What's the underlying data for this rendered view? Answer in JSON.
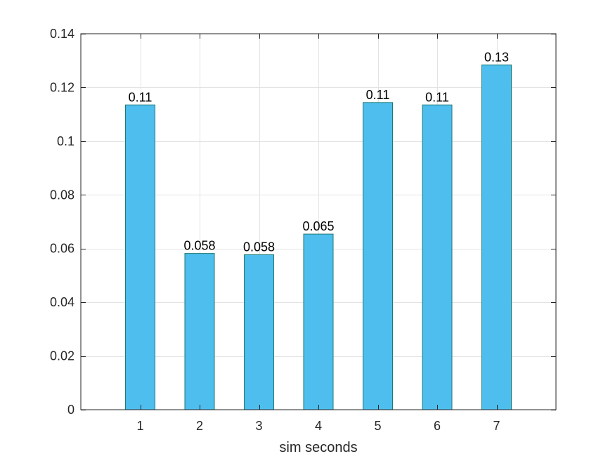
{
  "chart_data": {
    "type": "bar",
    "categories": [
      "1",
      "2",
      "3",
      "4",
      "5",
      "6",
      "7"
    ],
    "values": [
      0.1135,
      0.0582,
      0.0577,
      0.0654,
      0.1144,
      0.1135,
      0.1284
    ],
    "data_labels": [
      "0.11",
      "0.058",
      "0.058",
      "0.065",
      "0.11",
      "0.11",
      "0.13"
    ],
    "title": "",
    "xlabel": "sim seconds",
    "ylabel": "",
    "xlim": [
      0,
      8
    ],
    "ylim": [
      0,
      0.14
    ],
    "yticks": [
      0,
      0.02,
      0.04,
      0.06,
      0.08,
      0.1,
      0.12,
      0.14
    ],
    "ytick_labels": [
      "0",
      "0.02",
      "0.04",
      "0.06",
      "0.08",
      "0.1",
      "0.12",
      "0.14"
    ],
    "xticks": [
      1,
      2,
      3,
      4,
      5,
      6,
      7
    ],
    "xtick_labels": [
      "1",
      "2",
      "3",
      "4",
      "5",
      "6",
      "7"
    ],
    "grid": true,
    "bar_color": "#4DBEEE",
    "bar_edge_color": "#1F7A73",
    "grid_color": "#E3E3E3",
    "axis_color": "#262626"
  }
}
